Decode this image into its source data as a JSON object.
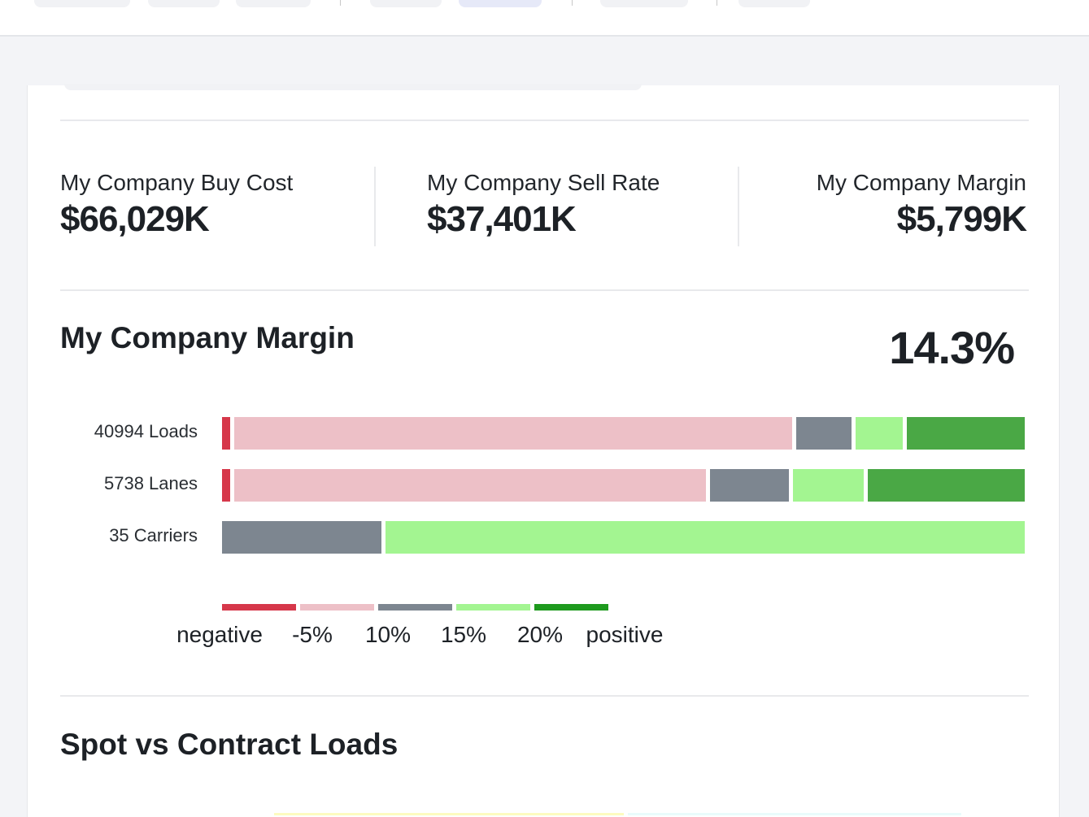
{
  "kpis": [
    {
      "label": "My Company Buy Cost",
      "value": "$66,029K"
    },
    {
      "label": "My Company Sell Rate",
      "value": "$37,401K"
    },
    {
      "label": "My Company Margin",
      "value": "$5,799K"
    }
  ],
  "margin_section": {
    "title": "My Company Margin",
    "percent": "14.3%"
  },
  "colors": {
    "negative": "#d6374a",
    "lt_5": "#edc0c7",
    "5_10": "#7d8690",
    "10_15": "#a3f591",
    "gt_20": "#4aa845",
    "legend_positive": "#1e9a1e"
  },
  "chart_data": {
    "type": "bar",
    "stacked": true,
    "normalized": true,
    "categories": [
      "40994 Loads",
      "5738 Lanes",
      "35 Carriers"
    ],
    "bands": [
      "negative",
      "-5%",
      "10%",
      "15%",
      "20%"
    ],
    "series_percent": [
      [
        1,
        71,
        7,
        6,
        15
      ],
      [
        1,
        60,
        10,
        9,
        20
      ],
      [
        0,
        0,
        20,
        80,
        0
      ]
    ],
    "legend_labels": [
      "negative",
      "-5%",
      "10%",
      "15%",
      "20%",
      "positive"
    ]
  },
  "spot_section": {
    "title": "Spot vs Contract Loads"
  }
}
